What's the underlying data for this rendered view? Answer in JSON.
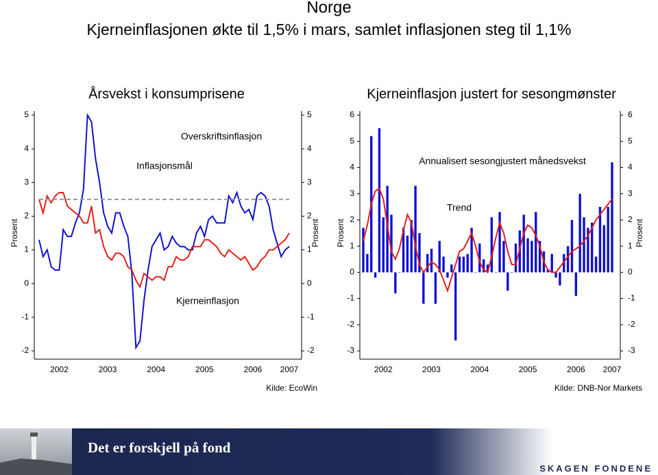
{
  "header": {
    "title": "Norge",
    "subtitle": "Kjerneinflasjonen økte til 1,5% i mars, samlet inflasjonen steg til 1,1%"
  },
  "chart_data": [
    {
      "type": "line",
      "title": "Årsvekst i konsumprisene",
      "y_label": "Prosent",
      "source": "Kilde: EcoWin",
      "categories": [
        null,
        null,
        null,
        null,
        null,
        "2002",
        null,
        null,
        null,
        null,
        null,
        null,
        null,
        null,
        null,
        null,
        null,
        "2003",
        null,
        null,
        null,
        null,
        null,
        null,
        null,
        null,
        null,
        null,
        null,
        "2004",
        null,
        null,
        null,
        null,
        null,
        null,
        null,
        null,
        null,
        null,
        null,
        "2005",
        null,
        null,
        null,
        null,
        null,
        null,
        null,
        null,
        null,
        null,
        null,
        "2006",
        null,
        null,
        null,
        null,
        null,
        null,
        null,
        null,
        "2007"
      ],
      "ylim": [
        -2,
        5
      ],
      "yticks": [
        -2,
        -1,
        0,
        1,
        2,
        3,
        4,
        5
      ],
      "series": [
        {
          "name": "Overskriftsinflasjon",
          "color": "#1010d0",
          "values": [
            1.3,
            0.8,
            1.0,
            0.5,
            0.4,
            0.4,
            1.6,
            1.4,
            1.4,
            1.8,
            2.1,
            2.8,
            5.0,
            4.8,
            3.7,
            3.0,
            2.1,
            1.7,
            1.5,
            2.1,
            2.1,
            1.7,
            1.4,
            0.3,
            -1.9,
            -1.7,
            -0.5,
            0.4,
            1.1,
            1.3,
            1.5,
            1.0,
            1.1,
            1.4,
            1.2,
            1.1,
            1.1,
            1.0,
            1.0,
            1.5,
            1.7,
            1.4,
            1.9,
            2.0,
            1.8,
            1.8,
            1.8,
            2.6,
            2.4,
            2.7,
            2.3,
            2.1,
            2.2,
            1.9,
            2.6,
            2.7,
            2.6,
            2.3,
            1.6,
            1.2,
            0.8,
            1.0,
            1.1
          ]
        },
        {
          "name": "Kjerneinflasjon",
          "color": "#e0201b",
          "values": [
            2.5,
            2.1,
            2.6,
            2.4,
            2.6,
            2.7,
            2.7,
            2.3,
            2.2,
            2.1,
            2.0,
            1.8,
            1.8,
            2.3,
            1.5,
            1.6,
            1.1,
            0.8,
            0.7,
            0.9,
            0.9,
            0.8,
            0.5,
            0.4,
            0.1,
            -0.1,
            0.3,
            0.2,
            0.1,
            0.2,
            0.2,
            0.1,
            0.5,
            0.5,
            0.8,
            0.7,
            0.7,
            0.8,
            1.1,
            1.1,
            1.1,
            1.3,
            1.3,
            1.2,
            1.1,
            0.9,
            0.8,
            1.0,
            0.9,
            0.8,
            0.7,
            0.8,
            0.6,
            0.4,
            0.5,
            0.7,
            0.8,
            1.0,
            1.0,
            1.1,
            1.2,
            1.3,
            1.5
          ]
        },
        {
          "name": "Inflasjonsmål",
          "color": "#999999",
          "dashed": true,
          "values": [
            2.5,
            2.5,
            2.5,
            2.5,
            2.5,
            2.5,
            2.5,
            2.5,
            2.5,
            2.5,
            2.5,
            2.5,
            2.5,
            2.5,
            2.5,
            2.5,
            2.5,
            2.5,
            2.5,
            2.5,
            2.5,
            2.5,
            2.5,
            2.5,
            2.5,
            2.5,
            2.5,
            2.5,
            2.5,
            2.5,
            2.5,
            2.5,
            2.5,
            2.5,
            2.5,
            2.5,
            2.5,
            2.5,
            2.5,
            2.5,
            2.5,
            2.5,
            2.5,
            2.5,
            2.5,
            2.5,
            2.5,
            2.5,
            2.5,
            2.5,
            2.5,
            2.5,
            2.5,
            2.5,
            2.5,
            2.5,
            2.5,
            2.5,
            2.5,
            2.5,
            2.5,
            2.5,
            2.5
          ]
        }
      ]
    },
    {
      "type": "bar",
      "title": "Kjerneinflasjon justert for sesongmønster",
      "y_label": "Prosent",
      "source": "Kilde: DNB-Nor Markets",
      "categories": [
        null,
        null,
        null,
        null,
        null,
        "2002",
        null,
        null,
        null,
        null,
        null,
        null,
        null,
        null,
        null,
        null,
        null,
        "2003",
        null,
        null,
        null,
        null,
        null,
        null,
        null,
        null,
        null,
        null,
        null,
        "2004",
        null,
        null,
        null,
        null,
        null,
        null,
        null,
        null,
        null,
        null,
        null,
        "2005",
        null,
        null,
        null,
        null,
        null,
        null,
        null,
        null,
        null,
        null,
        null,
        "2006",
        null,
        null,
        null,
        null,
        null,
        null,
        null,
        null,
        "2007"
      ],
      "ylim": [
        -3,
        6
      ],
      "yticks": [
        -3,
        -2,
        -1,
        0,
        1,
        2,
        3,
        4,
        5,
        6
      ],
      "series": [
        {
          "name": "Annualisert sesongjustert månedsvekst",
          "type": "bar",
          "color": "#1010d0",
          "values": [
            1.7,
            0.7,
            5.2,
            -0.2,
            5.5,
            2.1,
            3.3,
            2.2,
            -0.8,
            0.0,
            1.7,
            1.4,
            2.0,
            3.3,
            1.5,
            -1.2,
            0.7,
            0.9,
            -1.2,
            1.2,
            0.6,
            -0.2,
            0.3,
            -2.6,
            0.6,
            0.6,
            0.7,
            1.7,
            0.0,
            1.1,
            0.5,
            0.3,
            2.1,
            0.0,
            2.3,
            1.2,
            -0.7,
            0.0,
            1.1,
            1.6,
            2.2,
            1.3,
            1.2,
            2.3,
            1.2,
            0.8,
            0.1,
            0.7,
            -0.2,
            -0.5,
            0.7,
            1.0,
            2.0,
            -0.9,
            3.0,
            2.1,
            1.7,
            1.9,
            0.6,
            2.5,
            1.8,
            2.5,
            4.2
          ]
        },
        {
          "name": "Trend",
          "type": "line",
          "color": "#e0201b",
          "values": [
            1.2,
            1.8,
            2.6,
            3.1,
            3.2,
            2.8,
            1.8,
            0.8,
            0.5,
            0.9,
            1.6,
            2.2,
            1.9,
            1.0,
            0.3,
            0.0,
            0.2,
            0.4,
            0.3,
            0.1,
            -0.3,
            -0.7,
            -0.2,
            0.3,
            0.8,
            0.9,
            1.2,
            1.5,
            1.0,
            0.4,
            0.1,
            0.0,
            0.6,
            1.3,
            1.9,
            1.5,
            0.8,
            0.3,
            0.3,
            0.9,
            1.5,
            1.8,
            1.7,
            1.4,
            1.0,
            0.4,
            0.1,
            0.0,
            0.0,
            0.2,
            0.4,
            0.6,
            0.8,
            0.9,
            1.0,
            1.2,
            1.4,
            1.7,
            2.0,
            2.2,
            2.4,
            2.6,
            2.8
          ]
        }
      ]
    }
  ],
  "footer": {
    "slogan": "Det er forskjell på fond",
    "logo": "SKAGEN FONDENE"
  }
}
